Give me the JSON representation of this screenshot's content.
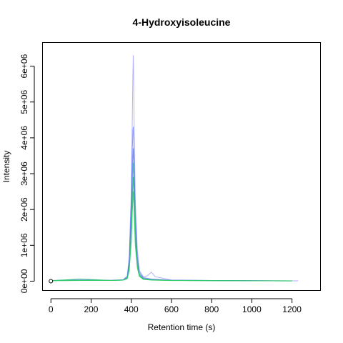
{
  "chart_data": {
    "type": "line",
    "title": "4-Hydroxyisoleucine",
    "xlabel": "Retention time (s)",
    "ylabel": "Intensity",
    "xlim": [
      -40,
      1340
    ],
    "ylim": [
      -250000,
      6650000
    ],
    "x_ticks": [
      0,
      200,
      400,
      600,
      800,
      1000,
      1200
    ],
    "x_tick_labels": [
      "0",
      "200",
      "400",
      "600",
      "800",
      "1000",
      "1200"
    ],
    "y_ticks": [
      0,
      1000000,
      2000000,
      3000000,
      4000000,
      5000000,
      6000000
    ],
    "y_tick_labels": [
      "0e+00",
      "1e+06",
      "2e+06",
      "3e+06",
      "4e+06",
      "5e+06",
      "6e+06"
    ],
    "grid": false,
    "legend": "none",
    "marker_point": {
      "x": 0,
      "y": 0
    },
    "series": [
      {
        "color": "#0000ff",
        "opacity": 0.3,
        "x": [
          0,
          150,
          300,
          360,
          380,
          390,
          400,
          405,
          408,
          410,
          412,
          415,
          420,
          430,
          440,
          460,
          480,
          500,
          520,
          540,
          560,
          600,
          800,
          1000,
          1230
        ],
        "y": [
          20000,
          30000,
          25000,
          40000,
          150000,
          700000,
          2500000,
          4500000,
          5800000,
          6300000,
          5600000,
          4000000,
          2300000,
          900000,
          300000,
          120000,
          150000,
          250000,
          120000,
          100000,
          80000,
          30000,
          20000,
          15000,
          10000
        ]
      },
      {
        "color": "#3050ff",
        "opacity": 0.55,
        "x": [
          0,
          150,
          300,
          360,
          380,
          390,
          400,
          405,
          408,
          410,
          412,
          415,
          420,
          430,
          440,
          460,
          500,
          560,
          600,
          800,
          1000,
          1200
        ],
        "y": [
          20000,
          30000,
          25000,
          40000,
          120000,
          600000,
          2200000,
          3600000,
          4200000,
          4300000,
          4000000,
          3200000,
          1900000,
          700000,
          250000,
          100000,
          60000,
          40000,
          25000,
          20000,
          15000,
          10000
        ]
      },
      {
        "color": "#4060d0",
        "opacity": 0.65,
        "x": [
          0,
          150,
          300,
          360,
          380,
          390,
          400,
          405,
          408,
          410,
          412,
          415,
          420,
          430,
          440,
          460,
          500,
          600,
          800,
          1000,
          1200
        ],
        "y": [
          20000,
          25000,
          20000,
          35000,
          100000,
          500000,
          1800000,
          3000000,
          3500000,
          3700000,
          3400000,
          2700000,
          1600000,
          600000,
          200000,
          80000,
          50000,
          25000,
          20000,
          15000,
          10000
        ]
      },
      {
        "color": "#40b0a0",
        "opacity": 0.8,
        "x": [
          0,
          150,
          300,
          360,
          380,
          390,
          400,
          405,
          410,
          412,
          415,
          420,
          430,
          440,
          460,
          500,
          600,
          800,
          1000,
          1200
        ],
        "y": [
          15000,
          20000,
          20000,
          30000,
          90000,
          400000,
          1500000,
          2600000,
          3300000,
          3000000,
          2400000,
          1400000,
          500000,
          180000,
          70000,
          40000,
          20000,
          15000,
          12000,
          8000
        ]
      },
      {
        "color": "#20c070",
        "opacity": 0.9,
        "x": [
          0,
          150,
          300,
          360,
          380,
          390,
          400,
          405,
          410,
          412,
          415,
          420,
          430,
          440,
          460,
          500,
          600,
          800,
          1000,
          1200
        ],
        "y": [
          15000,
          60000,
          20000,
          30000,
          80000,
          350000,
          1300000,
          2200000,
          2900000,
          2700000,
          2100000,
          1200000,
          450000,
          150000,
          60000,
          35000,
          20000,
          15000,
          10000,
          8000
        ]
      },
      {
        "color": "#30d060",
        "opacity": 0.9,
        "x": [
          0,
          150,
          300,
          360,
          380,
          390,
          400,
          405,
          410,
          412,
          415,
          420,
          430,
          440,
          460,
          500,
          600,
          800,
          1000,
          1200
        ],
        "y": [
          15000,
          20000,
          20000,
          30000,
          70000,
          300000,
          1100000,
          1900000,
          2500000,
          2300000,
          1800000,
          1000000,
          380000,
          130000,
          50000,
          30000,
          18000,
          14000,
          10000,
          8000
        ]
      }
    ]
  }
}
